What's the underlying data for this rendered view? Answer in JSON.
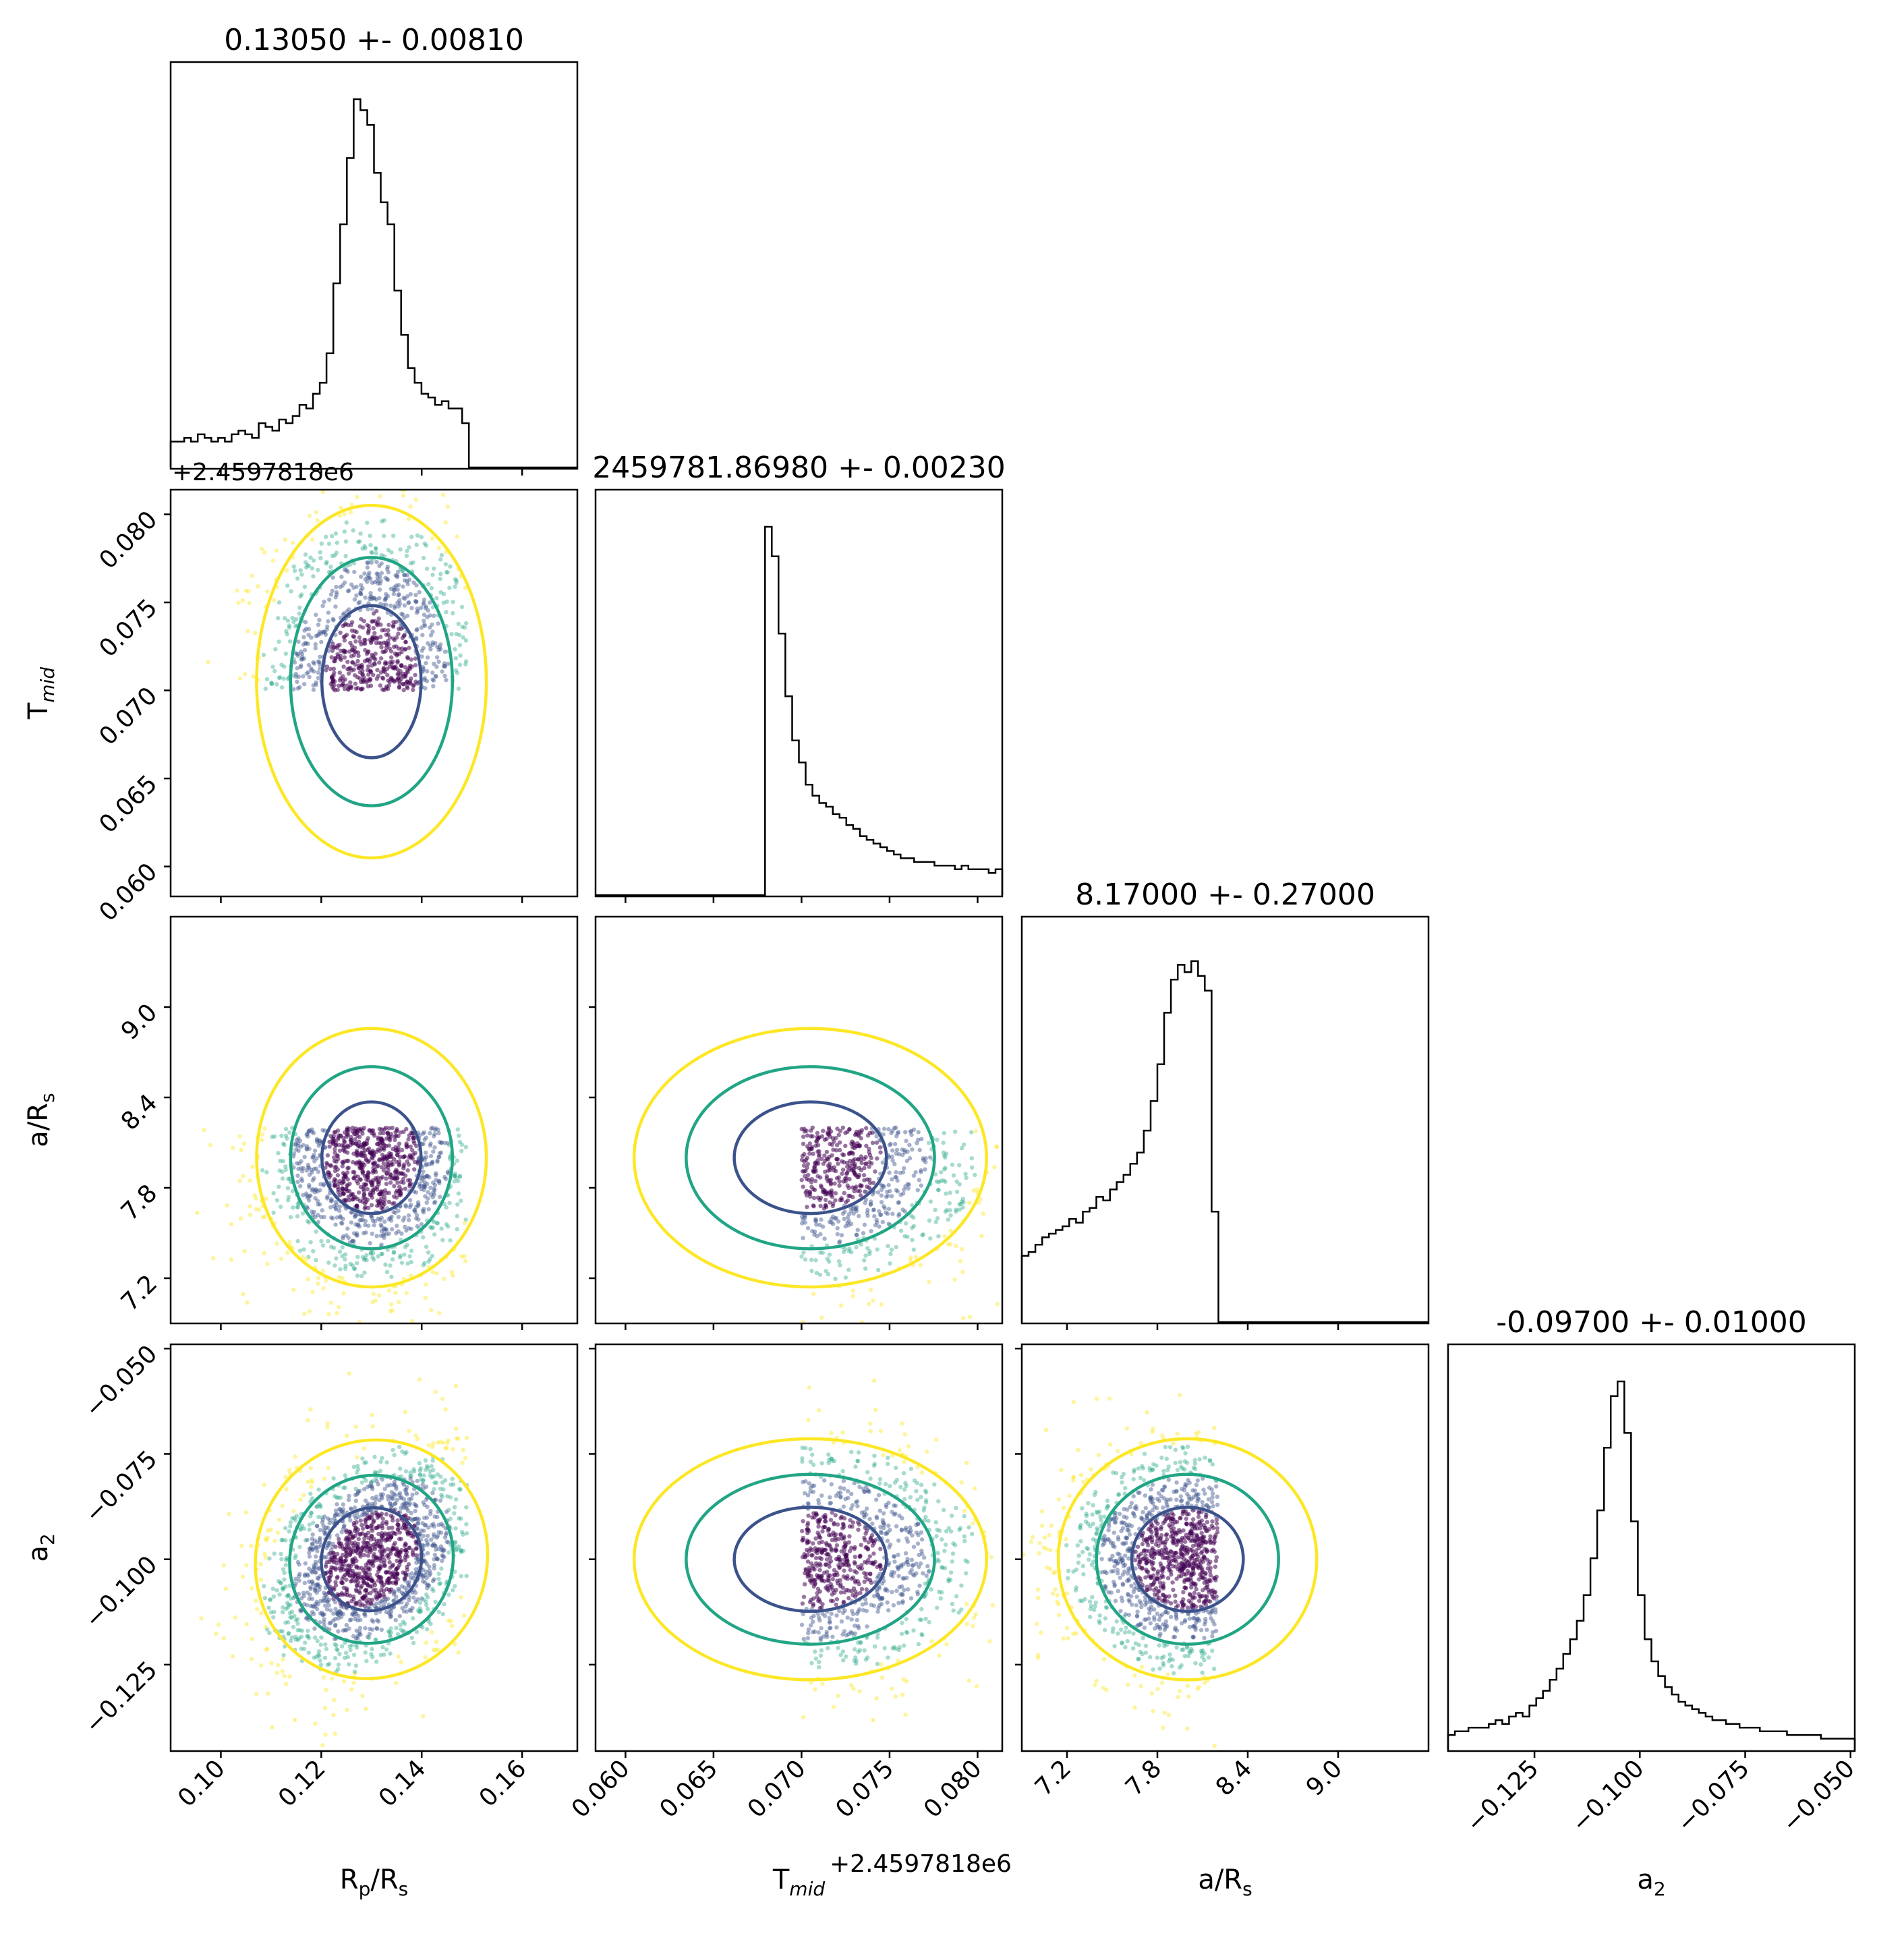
{
  "figure": {
    "type": "corner-plot",
    "colormap": "viridis",
    "axis_offset_label": "+2.4597818e6"
  },
  "colors": {
    "hist": "#000000",
    "level_outer": "#fde725",
    "level_mid": "#21a585",
    "level_inner": "#3b528b",
    "core": "#440154"
  },
  "params": [
    {
      "key": "rp",
      "label": "R_p/R_s",
      "label_main": "R",
      "label_sub": "p",
      "label_tail": "/R",
      "label_sub2": "s",
      "range": [
        0.09,
        0.171
      ],
      "ticks": [
        0.1,
        0.12,
        0.14,
        0.16
      ],
      "tick_labels": [
        "0.10",
        "0.12",
        "0.14",
        "0.16"
      ],
      "title": "0.13050 +- 0.00810"
    },
    {
      "key": "tmid",
      "label": "T_mid",
      "label_main": "T",
      "label_sub": "mid",
      "label_tail": "",
      "label_sub2": "",
      "range": [
        0.0583,
        0.0814
      ],
      "ticks": [
        0.06,
        0.065,
        0.07,
        0.075,
        0.08
      ],
      "tick_labels": [
        "0.060",
        "0.065",
        "0.070",
        "0.075",
        "0.080"
      ],
      "title": "2459781.86980 +- 0.00230"
    },
    {
      "key": "ars",
      "label": "a/R_s",
      "label_main": "a/R",
      "label_sub": "s",
      "label_tail": "",
      "label_sub2": "",
      "range": [
        6.9,
        9.6
      ],
      "ticks": [
        7.2,
        7.8,
        8.4,
        9.0
      ],
      "tick_labels": [
        "7.2",
        "7.8",
        "8.4",
        "9.0"
      ],
      "title": "8.17000 +- 0.27000"
    },
    {
      "key": "a2",
      "label": "a_2",
      "label_main": "a",
      "label_sub": "2",
      "label_tail": "",
      "label_sub2": "",
      "range": [
        -0.1455,
        -0.049
      ],
      "ticks": [
        -0.125,
        -0.1,
        -0.075,
        -0.05
      ],
      "tick_labels": [
        "−0.125",
        "−0.100",
        "−0.075",
        "−0.050"
      ],
      "title": "-0.09700 +- 0.01000"
    }
  ],
  "chart_data": {
    "type": "corner",
    "diagonal_histograms": [
      {
        "param": "R_p/R_s",
        "title": "0.13050 +- 0.00810",
        "x_range": [
          0.09,
          0.171
        ],
        "peak": 0.13,
        "bins": 60,
        "counts": [
          0.07,
          0.07,
          0.08,
          0.07,
          0.09,
          0.08,
          0.07,
          0.08,
          0.07,
          0.09,
          0.1,
          0.09,
          0.08,
          0.12,
          0.11,
          0.1,
          0.13,
          0.12,
          0.14,
          0.17,
          0.16,
          0.2,
          0.23,
          0.31,
          0.5,
          0.66,
          0.84,
          1.0,
          0.97,
          0.93,
          0.8,
          0.72,
          0.66,
          0.48,
          0.36,
          0.27,
          0.23,
          0.2,
          0.19,
          0.17,
          0.18,
          0.16,
          0.16,
          0.12,
          0.0,
          0.0,
          0.0,
          0.0,
          0.0,
          0.0,
          0.0,
          0.0,
          0.0,
          0.0,
          0.0,
          0.0,
          0.0,
          0.0,
          0.0,
          0.0
        ]
      },
      {
        "param": "T_mid",
        "title": "2459781.86980 +- 0.00230",
        "x_range": [
          0.0583,
          0.0814
        ],
        "peak": 0.07,
        "bins": 60,
        "counts": [
          0.0,
          0.0,
          0.0,
          0.0,
          0.0,
          0.0,
          0.0,
          0.0,
          0.0,
          0.0,
          0.0,
          0.0,
          0.0,
          0.0,
          0.0,
          0.0,
          0.0,
          0.0,
          0.0,
          0.0,
          0.0,
          0.0,
          0.0,
          0.0,
          0.0,
          1.0,
          0.92,
          0.71,
          0.54,
          0.42,
          0.36,
          0.3,
          0.27,
          0.25,
          0.24,
          0.22,
          0.21,
          0.19,
          0.18,
          0.16,
          0.15,
          0.14,
          0.13,
          0.12,
          0.11,
          0.1,
          0.1,
          0.09,
          0.09,
          0.09,
          0.08,
          0.08,
          0.08,
          0.07,
          0.08,
          0.07,
          0.07,
          0.07,
          0.06,
          0.07
        ]
      },
      {
        "param": "a/R_s",
        "title": "8.17000 +- 0.27000",
        "x_range": [
          6.9,
          9.6
        ],
        "peak": 7.95,
        "bins": 60,
        "counts": [
          0.18,
          0.19,
          0.21,
          0.23,
          0.24,
          0.25,
          0.26,
          0.28,
          0.27,
          0.3,
          0.31,
          0.34,
          0.33,
          0.36,
          0.38,
          0.4,
          0.43,
          0.46,
          0.52,
          0.6,
          0.7,
          0.84,
          0.93,
          0.97,
          0.95,
          0.98,
          0.94,
          0.9,
          0.3,
          0.0,
          0.0,
          0.0,
          0.0,
          0.0,
          0.0,
          0.0,
          0.0,
          0.0,
          0.0,
          0.0,
          0.0,
          0.0,
          0.0,
          0.0,
          0.0,
          0.0,
          0.0,
          0.0,
          0.0,
          0.0,
          0.0,
          0.0,
          0.0,
          0.0,
          0.0,
          0.0,
          0.0,
          0.0,
          0.0,
          0.0
        ]
      },
      {
        "param": "a_2",
        "title": "-0.09700 +- 0.01000",
        "x_range": [
          -0.1455,
          -0.049
        ],
        "peak": -0.1,
        "bins": 60,
        "counts": [
          0.04,
          0.05,
          0.05,
          0.06,
          0.06,
          0.06,
          0.07,
          0.08,
          0.07,
          0.09,
          0.1,
          0.09,
          0.12,
          0.14,
          0.16,
          0.19,
          0.22,
          0.26,
          0.3,
          0.35,
          0.42,
          0.52,
          0.65,
          0.82,
          0.96,
          1.0,
          0.86,
          0.62,
          0.42,
          0.3,
          0.24,
          0.2,
          0.17,
          0.15,
          0.13,
          0.12,
          0.11,
          0.1,
          0.09,
          0.08,
          0.08,
          0.07,
          0.07,
          0.06,
          0.06,
          0.06,
          0.05,
          0.05,
          0.05,
          0.05,
          0.04,
          0.04,
          0.04,
          0.04,
          0.04,
          0.03,
          0.03,
          0.03,
          0.03,
          0.03
        ]
      }
    ],
    "scatter_panels": [
      {
        "x": "R_p/R_s",
        "y": "T_mid",
        "center": [
          0.13,
          0.0705
        ],
        "x_cut": [
          0.09,
          0.149
        ],
        "y_cut": [
          0.07,
          0.0814
        ]
      },
      {
        "x": "R_p/R_s",
        "y": "a/R_s",
        "center": [
          0.13,
          8.0
        ],
        "x_cut": [
          0.09,
          0.149
        ],
        "y_cut": [
          6.9,
          8.2
        ]
      },
      {
        "x": "T_mid",
        "y": "a/R_s",
        "center": [
          0.0705,
          8.0
        ],
        "x_cut": [
          0.07,
          0.0814
        ],
        "y_cut": [
          6.9,
          8.2
        ]
      },
      {
        "x": "R_p/R_s",
        "y": "a_2",
        "center": [
          0.13,
          -0.1
        ],
        "x_cut": [
          0.09,
          0.149
        ],
        "y_cut": [
          -0.1455,
          -0.049
        ]
      },
      {
        "x": "T_mid",
        "y": "a_2",
        "center": [
          0.0705,
          -0.1
        ],
        "x_cut": [
          0.07,
          0.0814
        ],
        "y_cut": [
          -0.1455,
          -0.049
        ]
      },
      {
        "x": "a/R_s",
        "y": "a_2",
        "center": [
          8.0,
          -0.1
        ],
        "x_cut": [
          6.9,
          8.2
        ],
        "y_cut": [
          -0.1455,
          -0.049
        ]
      }
    ]
  }
}
